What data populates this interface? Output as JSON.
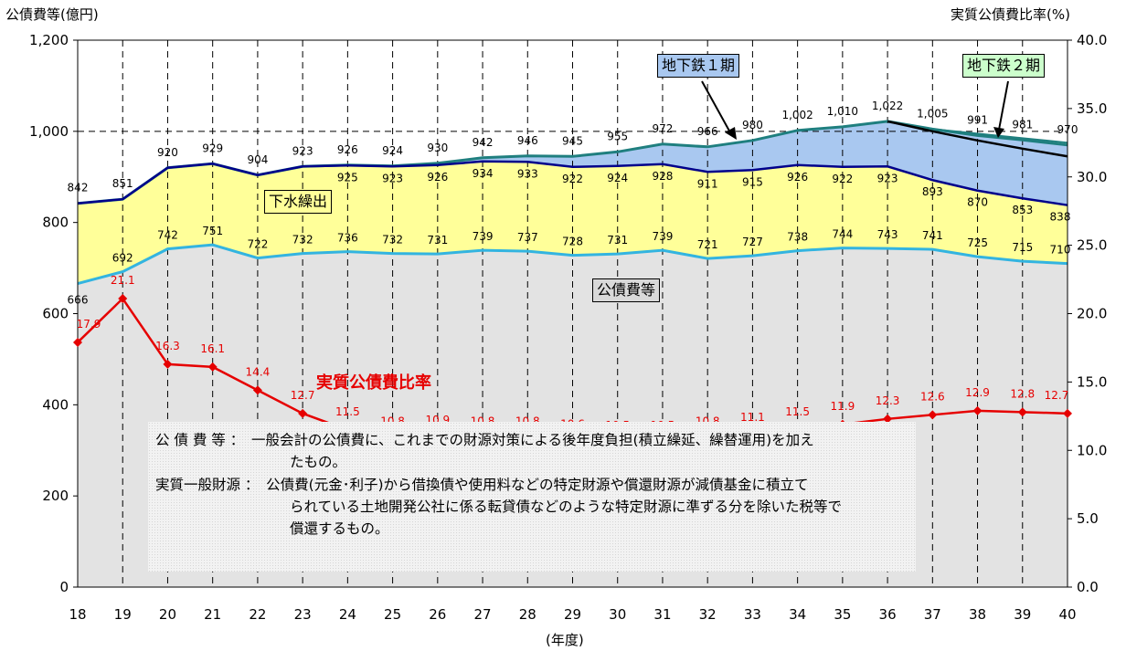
{
  "chart_data": {
    "type": "area",
    "y_left_title": "公債費等(億円)",
    "y_right_title": "実質公債費比率(%)",
    "x_title": "(年度)",
    "categories": [
      "18",
      "19",
      "20",
      "21",
      "22",
      "23",
      "24",
      "25",
      "26",
      "27",
      "28",
      "29",
      "30",
      "31",
      "32",
      "33",
      "34",
      "35",
      "36",
      "37",
      "38",
      "39",
      "40"
    ],
    "ylim_left": [
      0,
      1200
    ],
    "yticks_left": [
      "0",
      "200",
      "400",
      "600",
      "800",
      "1,000",
      "1,200"
    ],
    "ylim_right": [
      0,
      40
    ],
    "yticks_right": [
      "0.0",
      "5.0",
      "10.0",
      "15.0",
      "20.0",
      "25.0",
      "30.0",
      "35.0",
      "40.0"
    ],
    "series": [
      {
        "name": "公債費等",
        "values": [
          666,
          692,
          742,
          751,
          722,
          732,
          736,
          732,
          731,
          739,
          737,
          728,
          731,
          739,
          721,
          727,
          738,
          744,
          743,
          741,
          725,
          715,
          710
        ],
        "color": "#e3e3e3",
        "line": "#33b4e0"
      },
      {
        "name": "下水繰出",
        "values": [
          842,
          851,
          920,
          929,
          904,
          923,
          925,
          923,
          926,
          934,
          933,
          922,
          924,
          928,
          911,
          915,
          926,
          922,
          923,
          893,
          870,
          853,
          838
        ],
        "color": "#ffff99",
        "line": "#00008b"
      },
      {
        "name": "地下鉄1期",
        "values": [
          842,
          851,
          920,
          929,
          904,
          923,
          926,
          924,
          930,
          942,
          946,
          945,
          955,
          972,
          966,
          980,
          1002,
          1010,
          1022,
          1005,
          991,
          981,
          970
        ],
        "color": "#a9c8f0",
        "line": "#1f7f7f"
      },
      {
        "name": "地下鉄2期",
        "values": [
          842,
          851,
          920,
          929,
          904,
          923,
          926,
          924,
          930,
          942,
          946,
          945,
          955,
          972,
          966,
          980,
          1002,
          1010,
          1022,
          1005,
          991,
          981,
          970
        ],
        "color": "#ccffcc",
        "line": "#000000"
      }
    ],
    "top_labels": [
      "842",
      "851",
      "920",
      "929",
      "904",
      "923",
      "926",
      "924",
      "930",
      "942",
      "946",
      "945",
      "955",
      "972",
      "966",
      "980",
      "1,002",
      "1,010",
      "1,022",
      "1,005",
      "991",
      "981",
      "970"
    ],
    "ratio": {
      "name": "実質公債費比率",
      "values": [
        17.9,
        21.1,
        16.3,
        16.1,
        14.4,
        12.7,
        11.5,
        10.8,
        10.9,
        10.8,
        10.8,
        10.6,
        10.5,
        10.5,
        10.8,
        11.1,
        11.5,
        11.9,
        12.3,
        12.6,
        12.9,
        12.8,
        12.7
      ],
      "color": "#e60000"
    },
    "boxed_labels": [
      "下水繰出",
      "公債費等",
      "地下鉄１期",
      "地下鉄２期"
    ],
    "grid": "dashed vertical and 1,000 line"
  },
  "notes": {
    "line1": "公 債 費 等 ：　一般会計の公債費に、これまでの財源対策による後年度負担(積立繰延、繰替運用)を加え",
    "line2": "たもの。",
    "line3": "実質一般財源 ：　公債費(元金･利子)から借換債や使用料などの特定財源や償還財源が減債基金に積立て",
    "line4": "られている土地開発公社に係る転貸債などのような特定財源に準ずる分を除いた税等で",
    "line5": "償還するもの。"
  }
}
